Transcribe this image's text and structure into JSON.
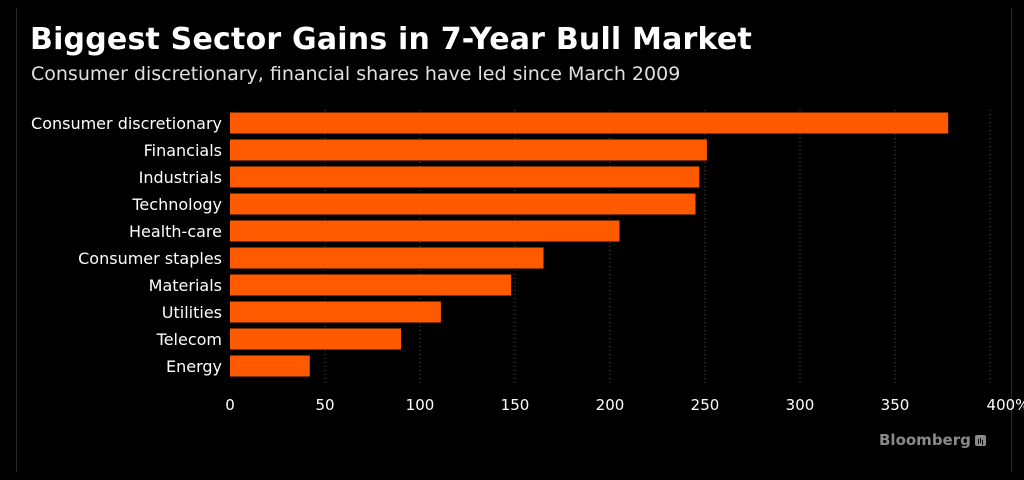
{
  "header": {
    "title": "Biggest Sector Gains in 7-Year Bull Market",
    "subtitle": "Consumer discretionary, financial shares have led since March 2009"
  },
  "footer": {
    "brand": "Bloomberg",
    "brand_icon": "chart-icon"
  },
  "colors": {
    "background": "#000000",
    "bar": "#ff5a00",
    "grid": "#555555",
    "text": "#ffffff"
  },
  "chart_data": {
    "type": "bar",
    "orientation": "horizontal",
    "categories": [
      "Consumer discretionary",
      "Financials",
      "Industrials",
      "Technology",
      "Health-care",
      "Consumer staples",
      "Materials",
      "Utilities",
      "Telecom",
      "Energy"
    ],
    "values": [
      378,
      251,
      247,
      245,
      205,
      165,
      148,
      111,
      90,
      42
    ],
    "xlim": [
      0,
      400
    ],
    "xticks": [
      "0",
      "50",
      "100",
      "150",
      "200",
      "250",
      "300",
      "350",
      "400%"
    ],
    "xtick_values": [
      0,
      50,
      100,
      150,
      200,
      250,
      300,
      350,
      400
    ],
    "grid": true
  }
}
